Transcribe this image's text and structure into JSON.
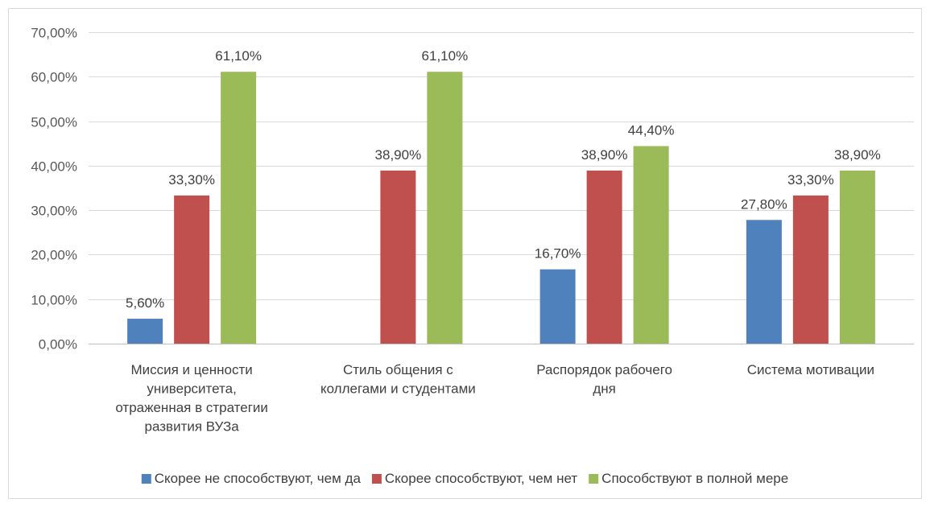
{
  "chart_data": {
    "type": "bar",
    "categories": [
      [
        "Миссия и ценности",
        "университета,",
        "отраженная в стратегии",
        "развития ВУЗа"
      ],
      [
        "Стиль общения с",
        "коллегами и студентами"
      ],
      [
        "Распорядок рабочего",
        "дня"
      ],
      [
        "Система мотивации"
      ]
    ],
    "series": [
      {
        "name": "Скорее не способствуют, чем да",
        "color": "#4f81bd",
        "values": [
          5.6,
          null,
          16.7,
          27.8
        ],
        "labels": [
          "5,60%",
          "",
          "16,70%",
          "27,80%"
        ]
      },
      {
        "name": "Скорее способствуют, чем нет",
        "color": "#c0504d",
        "values": [
          33.3,
          38.9,
          38.9,
          33.3
        ],
        "labels": [
          "33,30%",
          "38,90%",
          "38,90%",
          "33,30%"
        ]
      },
      {
        "name": "Способствуют в полной мере",
        "color": "#9bbb59",
        "values": [
          61.1,
          61.1,
          44.4,
          38.9
        ],
        "labels": [
          "61,10%",
          "61,10%",
          "44,40%",
          "38,90%"
        ]
      }
    ],
    "y_ticks": [
      0,
      10,
      20,
      30,
      40,
      50,
      60,
      70
    ],
    "y_tick_labels": [
      "0,00%",
      "10,00%",
      "20,00%",
      "30,00%",
      "40,00%",
      "50,00%",
      "60,00%",
      "70,00%"
    ],
    "ylim": [
      0,
      70
    ],
    "grid": true,
    "legend_position": "bottom",
    "title": "",
    "xlabel": "",
    "ylabel": ""
  }
}
